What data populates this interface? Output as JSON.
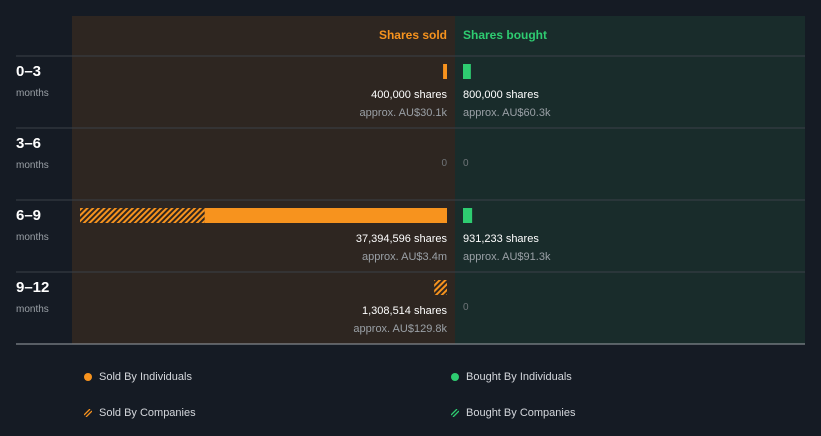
{
  "colors": {
    "background": "#151b24",
    "sold_panel": "#2e2621",
    "bought_panel": "#192c2b",
    "sold": "#f7931e",
    "bought": "#2ecc71",
    "divider": "#3b4048",
    "muted": "#9aa0a6"
  },
  "chart_data": {
    "type": "bar",
    "title": "",
    "columns": {
      "sold": "Shares sold",
      "bought": "Shares bought"
    },
    "period_unit": "months",
    "categories": [
      "0–3",
      "3–6",
      "6–9",
      "9–12"
    ],
    "series": [
      {
        "name": "Sold By Individuals",
        "side": "sold",
        "values": [
          400000,
          0,
          24700000,
          0
        ]
      },
      {
        "name": "Sold By Companies",
        "side": "sold",
        "values": [
          0,
          0,
          12694596,
          1308514
        ]
      },
      {
        "name": "Bought By Individuals",
        "side": "bought",
        "values": [
          800000,
          0,
          931233,
          0
        ]
      },
      {
        "name": "Bought By Companies",
        "side": "bought",
        "values": [
          0,
          0,
          0,
          0
        ]
      }
    ],
    "value_labels": {
      "sold": [
        "400,000 shares",
        "0",
        "37,394,596 shares",
        "1,308,514 shares"
      ],
      "sold_approx": [
        "approx. AU$30.1k",
        "",
        "approx. AU$3.4m",
        "approx. AU$129.8k"
      ],
      "bought": [
        "800,000 shares",
        "0",
        "931,233 shares",
        "0"
      ],
      "bought_approx": [
        "approx. AU$60.3k",
        "",
        "approx. AU$91.3k",
        ""
      ]
    },
    "xlim": [
      0,
      37394596
    ],
    "legend": [
      {
        "label": "Sold By Individuals",
        "style": "solid",
        "color": "#f7931e"
      },
      {
        "label": "Bought By Individuals",
        "style": "solid",
        "color": "#2ecc71"
      },
      {
        "label": "Sold By Companies",
        "style": "hatched",
        "color": "#f7931e"
      },
      {
        "label": "Bought By Companies",
        "style": "hatched",
        "color": "#2ecc71"
      }
    ],
    "legend_position": "bottom"
  }
}
